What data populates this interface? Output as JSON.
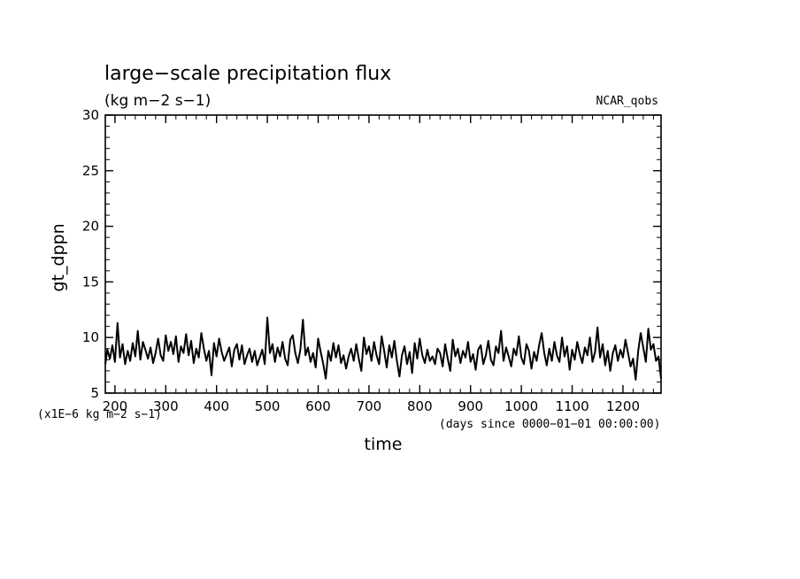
{
  "chart_data": {
    "type": "line",
    "title": "large−scale precipitation flux",
    "units": "(kg m−2 s−1)",
    "run_label": "NCAR_qobs",
    "ylabel": "gt_dppn",
    "xlabel": "time",
    "x_unit_note": "(days since 0000−01−01 00:00:00)",
    "y_scale_note": "(x1E−6 kg m−2 s−1)",
    "xlim": [
      181,
      1275
    ],
    "ylim": [
      5,
      30
    ],
    "x_ticks": [
      200,
      300,
      400,
      500,
      600,
      700,
      800,
      900,
      1000,
      1100,
      1200
    ],
    "x_tick_labels": [
      "200",
      "300",
      "400",
      "500",
      "600",
      "700",
      "800",
      "900",
      "1000",
      "1100",
      "1200"
    ],
    "y_ticks": [
      5,
      10,
      15,
      20,
      25,
      30
    ],
    "y_tick_labels": [
      "5",
      "10",
      "15",
      "20",
      "25",
      "30"
    ],
    "grid": false,
    "series": [
      {
        "x": [
          181,
          185,
          190,
          195,
          200,
          205,
          210,
          215,
          220,
          225,
          230,
          235,
          240,
          245,
          250,
          255,
          260,
          265,
          270,
          275,
          280,
          285,
          290,
          295,
          300,
          305,
          310,
          315,
          320,
          325,
          330,
          335,
          340,
          345,
          350,
          355,
          360,
          365,
          370,
          375,
          380,
          385,
          390,
          395,
          400,
          405,
          410,
          415,
          420,
          425,
          430,
          435,
          440,
          445,
          450,
          455,
          460,
          465,
          470,
          475,
          480,
          485,
          490,
          495,
          500,
          505,
          510,
          515,
          520,
          525,
          530,
          535,
          540,
          545,
          550,
          555,
          560,
          565,
          570,
          575,
          580,
          585,
          590,
          595,
          600,
          605,
          610,
          615,
          620,
          625,
          630,
          635,
          640,
          645,
          650,
          655,
          660,
          665,
          670,
          675,
          680,
          685,
          690,
          695,
          700,
          705,
          710,
          715,
          720,
          725,
          730,
          735,
          740,
          745,
          750,
          755,
          760,
          765,
          770,
          775,
          780,
          785,
          790,
          795,
          800,
          805,
          810,
          815,
          820,
          825,
          830,
          835,
          840,
          845,
          850,
          855,
          860,
          865,
          870,
          875,
          880,
          885,
          890,
          895,
          900,
          905,
          910,
          915,
          920,
          925,
          930,
          935,
          940,
          945,
          950,
          955,
          960,
          965,
          970,
          975,
          980,
          985,
          990,
          995,
          1000,
          1005,
          1010,
          1015,
          1020,
          1025,
          1030,
          1035,
          1040,
          1045,
          1050,
          1055,
          1060,
          1065,
          1070,
          1075,
          1080,
          1085,
          1090,
          1095,
          1100,
          1105,
          1110,
          1115,
          1120,
          1125,
          1130,
          1135,
          1140,
          1145,
          1150,
          1155,
          1160,
          1165,
          1170,
          1175,
          1180,
          1185,
          1190,
          1195,
          1200,
          1205,
          1210,
          1215,
          1220,
          1225,
          1230,
          1235,
          1240,
          1245,
          1250,
          1255,
          1260,
          1265,
          1270,
          1275
        ],
        "y": [
          7.6,
          8.9,
          8.1,
          9.3,
          7.8,
          11.3,
          8.2,
          9.4,
          7.6,
          8.8,
          7.9,
          9.5,
          8.3,
          10.6,
          8.0,
          9.6,
          8.9,
          8.1,
          9.1,
          7.7,
          8.6,
          9.9,
          8.4,
          7.9,
          10.2,
          8.8,
          9.6,
          8.5,
          10.1,
          7.8,
          9.2,
          8.6,
          10.3,
          8.4,
          9.7,
          7.7,
          9.0,
          8.2,
          10.4,
          9.0,
          7.9,
          8.8,
          6.6,
          9.5,
          8.3,
          9.9,
          8.7,
          7.9,
          8.5,
          9.1,
          7.4,
          8.9,
          9.4,
          8.0,
          9.3,
          7.6,
          8.4,
          9.0,
          7.8,
          8.8,
          7.5,
          8.2,
          8.9,
          7.6,
          11.8,
          8.6,
          9.4,
          7.8,
          9.1,
          8.3,
          9.6,
          8.1,
          7.5,
          9.8,
          10.2,
          8.6,
          7.7,
          8.9,
          11.6,
          8.4,
          9.1,
          7.8,
          8.6,
          7.3,
          9.9,
          8.7,
          7.6,
          6.3,
          8.8,
          7.9,
          9.5,
          8.2,
          9.3,
          7.7,
          8.4,
          7.2,
          8.3,
          9.0,
          7.9,
          9.4,
          8.1,
          7.0,
          10.0,
          8.5,
          9.2,
          7.9,
          9.6,
          8.4,
          7.6,
          10.1,
          8.8,
          7.3,
          9.3,
          8.2,
          9.7,
          7.9,
          6.5,
          8.4,
          9.2,
          7.6,
          8.7,
          6.8,
          9.5,
          8.1,
          9.9,
          8.4,
          7.7,
          8.9,
          7.9,
          8.3,
          7.6,
          9.0,
          8.6,
          7.4,
          9.4,
          8.1,
          7.0,
          9.8,
          8.3,
          9.0,
          7.7,
          8.8,
          8.2,
          9.6,
          7.8,
          8.5,
          7.1,
          8.9,
          9.3,
          7.6,
          8.4,
          9.7,
          8.0,
          7.5,
          9.2,
          8.6,
          10.6,
          7.9,
          9.1,
          8.3,
          7.4,
          9.0,
          8.4,
          10.1,
          8.2,
          7.6,
          9.4,
          8.8,
          7.2,
          8.7,
          7.9,
          9.3,
          10.4,
          8.6,
          7.5,
          9.0,
          7.9,
          9.6,
          8.4,
          7.8,
          10.0,
          8.3,
          9.2,
          7.1,
          8.9,
          8.0,
          9.6,
          8.5,
          7.7,
          9.1,
          8.4,
          10.0,
          7.8,
          8.7,
          10.9,
          8.2,
          9.4,
          7.5,
          8.8,
          7.0,
          8.6,
          9.3,
          7.9,
          8.9,
          8.2,
          9.8,
          8.6,
          7.4,
          8.1,
          6.2,
          8.8,
          10.4,
          9.1,
          7.8,
          10.8,
          8.9,
          9.4,
          7.9,
          8.3,
          6.3
        ],
        "color": "#000000"
      }
    ]
  }
}
